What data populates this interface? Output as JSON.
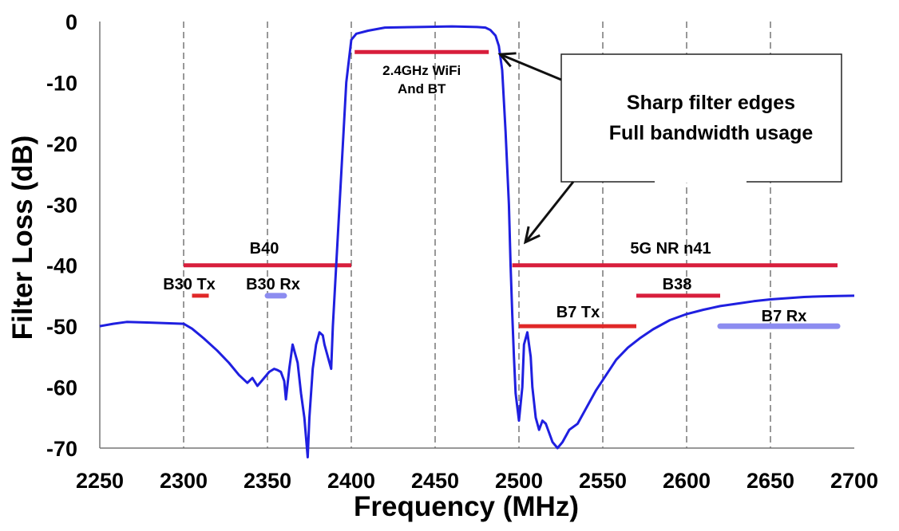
{
  "chart_data": {
    "type": "line",
    "xlabel": "Frequency (MHz)",
    "ylabel": "Filter Loss (dB)",
    "xlim": [
      2250,
      2700
    ],
    "ylim": [
      -70,
      0
    ],
    "xticks": [
      2250,
      2300,
      2350,
      2400,
      2450,
      2500,
      2550,
      2600,
      2650,
      2700
    ],
    "yticks": [
      0,
      -10,
      -20,
      -30,
      -40,
      -50,
      -60,
      -70
    ],
    "grid": "vertical-dashed",
    "series": [
      {
        "color": "#1f1fe0",
        "x": [
          2250,
          2258,
          2266,
          2280,
          2300,
          2305,
          2312,
          2320,
          2327,
          2333,
          2338,
          2341,
          2344,
          2348,
          2351,
          2354,
          2356,
          2358,
          2360,
          2361,
          2363,
          2365,
          2368,
          2370,
          2372,
          2374,
          2375,
          2377,
          2379,
          2381,
          2383,
          2384,
          2386,
          2388,
          2389,
          2391,
          2393,
          2395,
          2397,
          2400,
          2403,
          2410,
          2420,
          2440,
          2460,
          2475,
          2480,
          2483,
          2486,
          2488,
          2490,
          2492,
          2494,
          2495,
          2496,
          2497,
          2498,
          2500,
          2502,
          2503,
          2505,
          2507,
          2508,
          2510,
          2512,
          2514,
          2516,
          2518,
          2520,
          2523,
          2526,
          2530,
          2535,
          2540,
          2546,
          2552,
          2558,
          2565,
          2572,
          2580,
          2590,
          2600,
          2610,
          2620,
          2630,
          2640,
          2650,
          2660,
          2670,
          2680,
          2690,
          2700
        ],
        "y": [
          -50,
          -49.6,
          -49.3,
          -49.4,
          -49.6,
          -50.4,
          -52,
          -54,
          -56,
          -58,
          -59.3,
          -58.5,
          -59.8,
          -58.5,
          -57.5,
          -57,
          -57.2,
          -57.5,
          -59,
          -62,
          -57,
          -53,
          -56,
          -61,
          -65,
          -71.5,
          -65,
          -57,
          -53,
          -51,
          -51.5,
          -53,
          -55,
          -57,
          -50,
          -40,
          -30,
          -20,
          -10,
          -3,
          -2,
          -1.5,
          -1,
          -0.9,
          -0.8,
          -0.9,
          -1,
          -1.4,
          -2.3,
          -4,
          -8,
          -18,
          -30,
          -40,
          -48,
          -55,
          -61,
          -65.5,
          -60,
          -53,
          -51,
          -55,
          -60,
          -65,
          -67,
          -65.5,
          -66,
          -67.5,
          -69,
          -70,
          -69,
          -67,
          -66,
          -63.5,
          -60.5,
          -58,
          -55.5,
          -53.5,
          -52,
          -50.5,
          -49,
          -48,
          -47.3,
          -46.7,
          -46.3,
          -45.9,
          -45.6,
          -45.4,
          -45.2,
          -45.1,
          -45.05,
          -45
        ]
      }
    ],
    "bands": [
      {
        "label": "B40",
        "start": 2300,
        "end": 2400,
        "level": -40,
        "color": "#d81e3c"
      },
      {
        "label": "B30 Tx",
        "start": 2305,
        "end": 2315,
        "level": -45,
        "color": "#e02828"
      },
      {
        "label": "B30 Rx",
        "start": 2350,
        "end": 2360,
        "level": -45,
        "color": "#8c8cf0"
      },
      {
        "label": "2.4GHz WiFi\nAnd BT",
        "start": 2402,
        "end": 2482,
        "level": -5,
        "color": "#d81e3c"
      },
      {
        "label": "5G NR n41",
        "start": 2496,
        "end": 2690,
        "level": -40,
        "color": "#d81e3c"
      },
      {
        "label": "B38",
        "start": 2570,
        "end": 2620,
        "level": -45,
        "color": "#d81e3c"
      },
      {
        "label": "B7 Tx",
        "start": 2500,
        "end": 2570,
        "level": -50,
        "color": "#e02828"
      },
      {
        "label": "B7 Rx",
        "start": 2620,
        "end": 2690,
        "level": -50,
        "color": "#8c8cf0"
      }
    ],
    "annotation": {
      "lines": [
        "Sharp filter edges",
        "Full bandwidth usage"
      ],
      "arrow_targets": [
        [
          2485,
          -5
        ],
        [
          2500,
          -37
        ]
      ]
    }
  }
}
